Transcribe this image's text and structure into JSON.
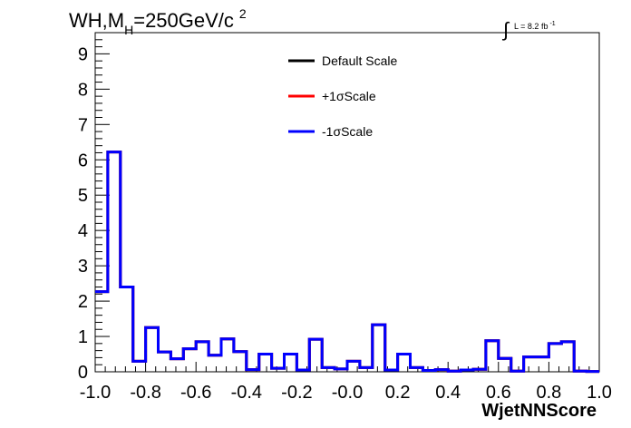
{
  "chart_data": {
    "type": "line",
    "title": {
      "main": "WH,M",
      "subscript": "H",
      "rest": "=250GeV/c",
      "superscript": "2"
    },
    "lumi_label": {
      "integral": "∫",
      "text": "L = 8.2 fb",
      "exponent": "-1"
    },
    "xlabel": "WjetNNScore",
    "ylabel": "",
    "xlim": [
      -1.0,
      1.0
    ],
    "ylim": [
      0,
      9.6
    ],
    "x_ticks": [
      "-1.0",
      "-0.8",
      "-0.6",
      "-0.4",
      "-0.2",
      "-0.0",
      "0.2",
      "0.4",
      "0.6",
      "0.8",
      "1.0"
    ],
    "y_ticks": [
      "0",
      "1",
      "2",
      "3",
      "4",
      "5",
      "6",
      "7",
      "8",
      "9"
    ],
    "legend_position": "top-center",
    "bin_edges": [
      -1.0,
      -0.95,
      -0.9,
      -0.85,
      -0.8,
      -0.75,
      -0.7,
      -0.65,
      -0.6,
      -0.55,
      -0.5,
      -0.45,
      -0.4,
      -0.35,
      -0.3,
      -0.25,
      -0.2,
      -0.15,
      -0.1,
      -0.05,
      0.0,
      0.05,
      0.1,
      0.15,
      0.2,
      0.25,
      0.3,
      0.35,
      0.4,
      0.45,
      0.5,
      0.55,
      0.6,
      0.65,
      0.7,
      0.75,
      0.8,
      0.85,
      0.9,
      0.95,
      1.0
    ],
    "series": [
      {
        "name": "Default Scale",
        "color": "#000000",
        "values": [
          2.27,
          6.22,
          2.4,
          0.3,
          1.25,
          0.56,
          0.37,
          0.65,
          0.85,
          0.47,
          0.93,
          0.57,
          0.06,
          0.5,
          0.1,
          0.5,
          0.05,
          0.92,
          0.12,
          0.08,
          0.3,
          0.12,
          1.33,
          0.05,
          0.5,
          0.12,
          0.04,
          0.06,
          0.02,
          0.05,
          0.07,
          0.88,
          0.38,
          0.02,
          0.42,
          0.42,
          0.8,
          0.85,
          0.02,
          0.01
        ]
      },
      {
        "name": "+1σScale",
        "color": "#ff0000",
        "values": [
          2.27,
          6.22,
          2.4,
          0.3,
          1.25,
          0.56,
          0.37,
          0.65,
          0.85,
          0.47,
          0.93,
          0.57,
          0.06,
          0.5,
          0.1,
          0.5,
          0.05,
          0.92,
          0.12,
          0.08,
          0.3,
          0.12,
          1.33,
          0.05,
          0.5,
          0.12,
          0.04,
          0.06,
          0.02,
          0.05,
          0.07,
          0.88,
          0.38,
          0.02,
          0.42,
          0.42,
          0.8,
          0.85,
          0.02,
          0.01
        ]
      },
      {
        "name": "-1σScale",
        "color": "#0000ff",
        "values": [
          2.27,
          6.22,
          2.4,
          0.3,
          1.25,
          0.56,
          0.37,
          0.65,
          0.85,
          0.47,
          0.93,
          0.57,
          0.06,
          0.5,
          0.1,
          0.5,
          0.05,
          0.92,
          0.12,
          0.08,
          0.3,
          0.12,
          1.33,
          0.05,
          0.5,
          0.12,
          0.04,
          0.06,
          0.02,
          0.05,
          0.07,
          0.88,
          0.38,
          0.02,
          0.42,
          0.42,
          0.8,
          0.85,
          0.02,
          0.01
        ]
      }
    ]
  }
}
